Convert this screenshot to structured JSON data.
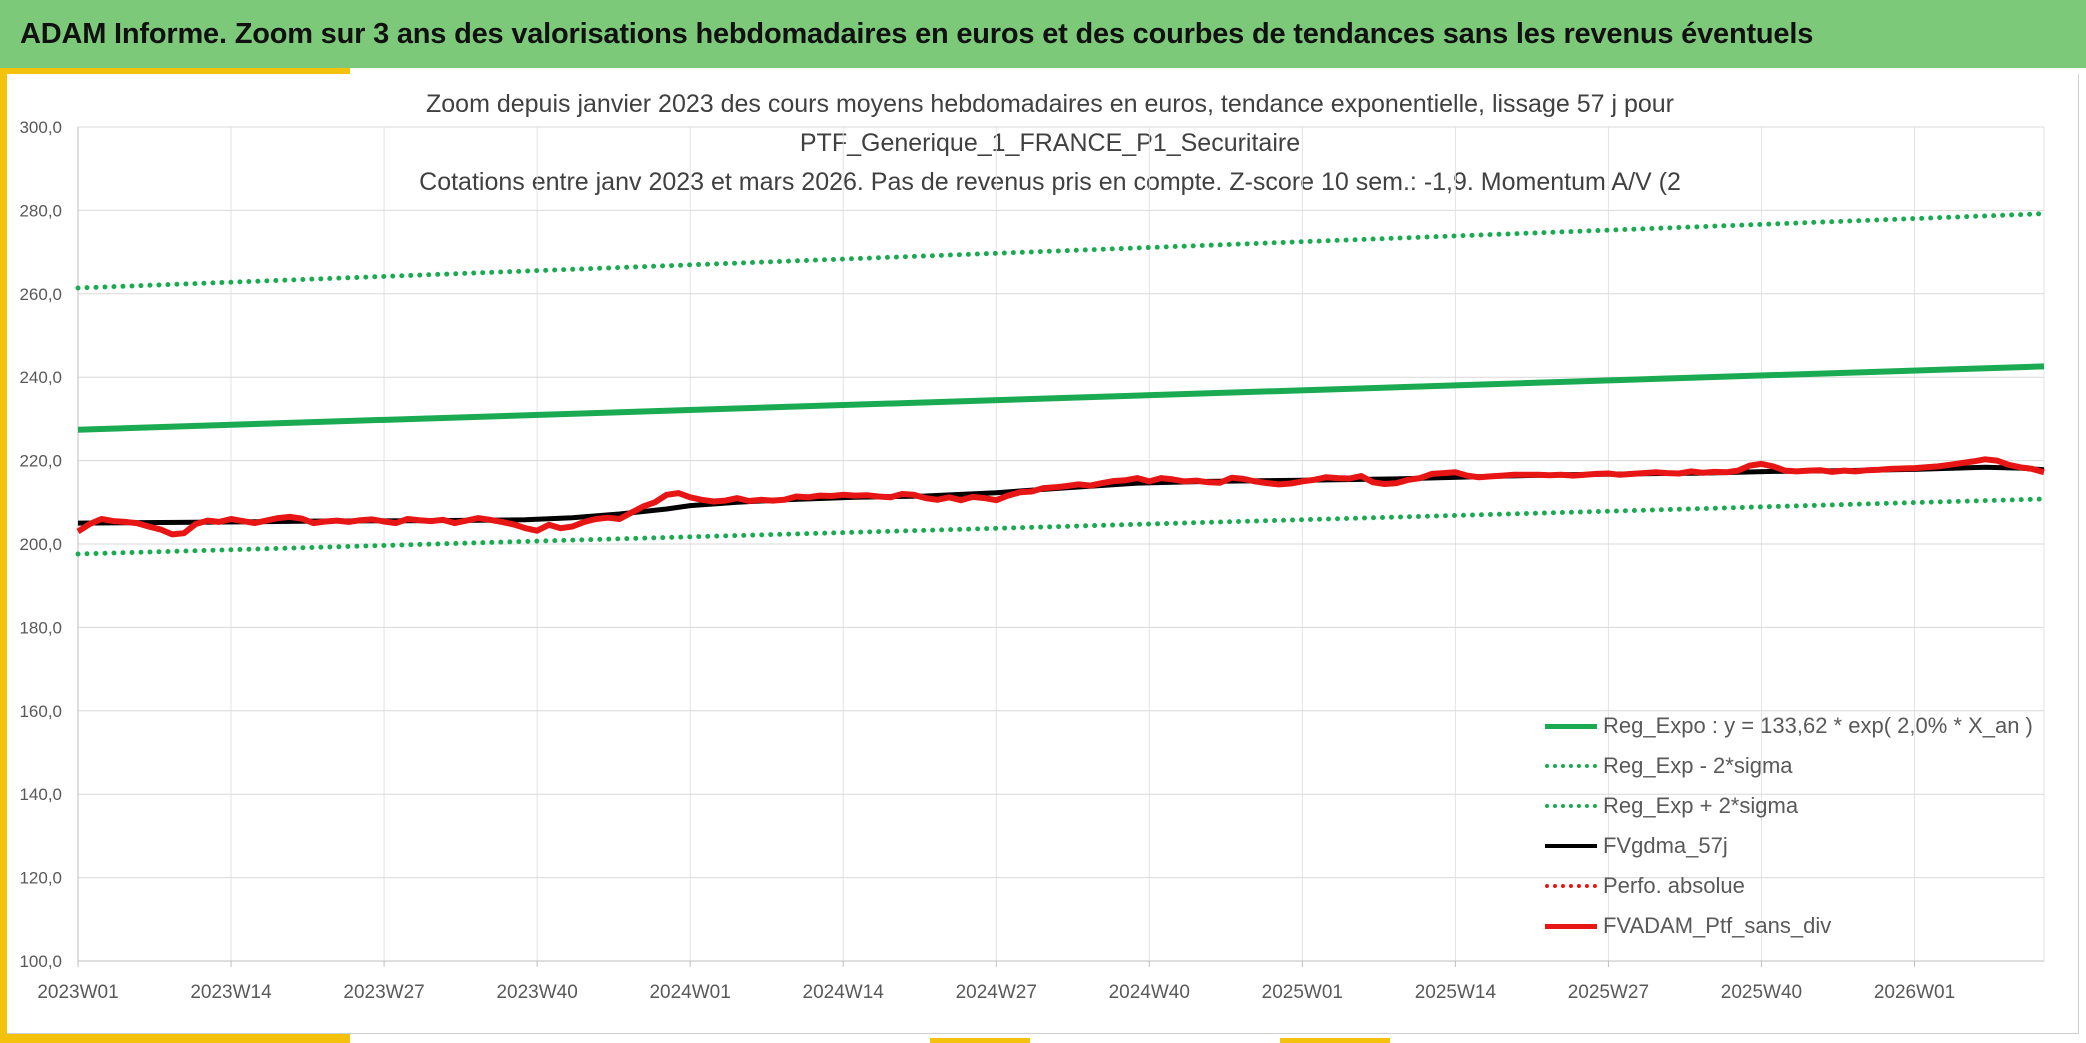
{
  "header": {
    "title": "ADAM Informe. Zoom sur 3 ans des valorisations hebdomadaires en euros et des courbes de tendances sans les revenus éventuels"
  },
  "colors": {
    "header_bg": "#7dc97a",
    "accent": "#f4c20d",
    "trend": "#1aab52",
    "smooth": "#000000",
    "perf": "#e81515"
  },
  "chart_data": {
    "type": "line",
    "title_lines": [
      "Zoom depuis janvier 2023 des cours moyens hebdomadaires en euros, tendance exponentielle, lissage 57 j pour",
      "PTF_Generique_1_FRANCE_P1_Securitaire",
      "Cotations entre janv 2023 et mars 2026. Pas de revenus pris en compte. Z-score 10 sem.: -1,9. Momentum A/V (2"
    ],
    "ylim": [
      100,
      300
    ],
    "y_ticks": [
      "100,0",
      "120,0",
      "140,0",
      "160,0",
      "180,0",
      "200,0",
      "220,0",
      "240,0",
      "260,0",
      "280,0",
      "300,0"
    ],
    "x_count": 168,
    "x_ticks": [
      {
        "label": "2023W01",
        "index": 0
      },
      {
        "label": "2023W14",
        "index": 13
      },
      {
        "label": "2023W27",
        "index": 26
      },
      {
        "label": "2023W40",
        "index": 39
      },
      {
        "label": "2024W01",
        "index": 52
      },
      {
        "label": "2024W14",
        "index": 65
      },
      {
        "label": "2024W27",
        "index": 78
      },
      {
        "label": "2024W40",
        "index": 91
      },
      {
        "label": "2025W01",
        "index": 104
      },
      {
        "label": "2025W14",
        "index": 117
      },
      {
        "label": "2025W27",
        "index": 130
      },
      {
        "label": "2025W40",
        "index": 143
      },
      {
        "label": "2026W01",
        "index": 156
      }
    ],
    "series": [
      {
        "name": "Reg_Expo : y = 133,62 * exp( 2,0% *  X_an )",
        "style": "solid",
        "color": "#1aab52",
        "width": 6,
        "points": [
          [
            0,
            227.4
          ],
          [
            167,
            242.6
          ]
        ]
      },
      {
        "name": "Reg_Exp - 2*sigma",
        "style": "dotted",
        "color": "#1aab52",
        "width": 5,
        "points": [
          [
            0,
            197.6
          ],
          [
            167,
            210.8
          ]
        ]
      },
      {
        "name": "Reg_Exp + 2*sigma",
        "style": "dotted",
        "color": "#1aab52",
        "width": 5,
        "points": [
          [
            0,
            261.4
          ],
          [
            167,
            279.2
          ]
        ]
      },
      {
        "name": "FVgdma_57j",
        "style": "solid",
        "color": "#000000",
        "width": 5,
        "points": [
          [
            0,
            205.0
          ],
          [
            10,
            205.2
          ],
          [
            20,
            205.5
          ],
          [
            30,
            205.6
          ],
          [
            38,
            205.8
          ],
          [
            42,
            206.3
          ],
          [
            46,
            207.2
          ],
          [
            50,
            208.4
          ],
          [
            52,
            209.2
          ],
          [
            56,
            210.0
          ],
          [
            60,
            210.6
          ],
          [
            66,
            211.2
          ],
          [
            72,
            211.5
          ],
          [
            78,
            212.3
          ],
          [
            84,
            213.5
          ],
          [
            90,
            214.6
          ],
          [
            96,
            215.0
          ],
          [
            104,
            215.3
          ],
          [
            112,
            215.6
          ],
          [
            120,
            216.2
          ],
          [
            126,
            216.6
          ],
          [
            132,
            216.8
          ],
          [
            138,
            217.0
          ],
          [
            144,
            217.4
          ],
          [
            150,
            217.6
          ],
          [
            156,
            217.9
          ],
          [
            162,
            218.4
          ],
          [
            165,
            218.2
          ],
          [
            167,
            217.8
          ]
        ]
      },
      {
        "name": "Perfo. absolue",
        "style": "dotted",
        "color": "#e81515",
        "width": 5,
        "points": []
      },
      {
        "name": "FVADAM_Ptf_sans_div",
        "style": "solid",
        "color": "#e81515",
        "width": 6,
        "points": [
          [
            0,
            203.0
          ],
          [
            1,
            204.8
          ],
          [
            2,
            206.0
          ],
          [
            3,
            205.5
          ],
          [
            4,
            205.3
          ],
          [
            5,
            205.0
          ],
          [
            6,
            204.2
          ],
          [
            7,
            203.5
          ],
          [
            8,
            202.3
          ],
          [
            9,
            202.6
          ],
          [
            10,
            204.8
          ],
          [
            11,
            205.6
          ],
          [
            12,
            205.3
          ],
          [
            13,
            206.0
          ],
          [
            14,
            205.5
          ],
          [
            15,
            205.0
          ],
          [
            16,
            205.6
          ],
          [
            17,
            206.2
          ],
          [
            18,
            206.5
          ],
          [
            19,
            206.1
          ],
          [
            20,
            205.0
          ],
          [
            21,
            205.4
          ],
          [
            22,
            205.6
          ],
          [
            23,
            205.3
          ],
          [
            24,
            205.7
          ],
          [
            25,
            205.9
          ],
          [
            26,
            205.4
          ],
          [
            27,
            205.0
          ],
          [
            28,
            206.0
          ],
          [
            29,
            205.7
          ],
          [
            30,
            205.5
          ],
          [
            31,
            205.8
          ],
          [
            32,
            205.0
          ],
          [
            33,
            205.6
          ],
          [
            34,
            206.2
          ],
          [
            35,
            205.8
          ],
          [
            36,
            205.3
          ],
          [
            37,
            204.7
          ],
          [
            38,
            203.8
          ],
          [
            39,
            203.2
          ],
          [
            40,
            204.6
          ],
          [
            41,
            203.8
          ],
          [
            42,
            204.2
          ],
          [
            43,
            205.3
          ],
          [
            44,
            206.0
          ],
          [
            45,
            206.3
          ],
          [
            46,
            206.0
          ],
          [
            47,
            207.5
          ],
          [
            48,
            209.0
          ],
          [
            49,
            210.0
          ],
          [
            50,
            211.8
          ],
          [
            51,
            212.2
          ],
          [
            52,
            211.2
          ],
          [
            53,
            210.6
          ],
          [
            54,
            210.2
          ],
          [
            55,
            210.4
          ],
          [
            56,
            211.0
          ],
          [
            57,
            210.3
          ],
          [
            58,
            210.6
          ],
          [
            59,
            210.4
          ],
          [
            60,
            210.6
          ],
          [
            61,
            211.4
          ],
          [
            62,
            211.2
          ],
          [
            63,
            211.6
          ],
          [
            64,
            211.5
          ],
          [
            65,
            211.8
          ],
          [
            66,
            211.6
          ],
          [
            67,
            211.7
          ],
          [
            68,
            211.4
          ],
          [
            69,
            211.2
          ],
          [
            70,
            212.0
          ],
          [
            71,
            211.8
          ],
          [
            72,
            211.0
          ],
          [
            73,
            210.6
          ],
          [
            74,
            211.2
          ],
          [
            75,
            210.5
          ],
          [
            76,
            211.3
          ],
          [
            77,
            211.0
          ],
          [
            78,
            210.5
          ],
          [
            79,
            211.6
          ],
          [
            80,
            212.4
          ],
          [
            81,
            212.6
          ],
          [
            82,
            213.4
          ],
          [
            83,
            213.6
          ],
          [
            84,
            213.9
          ],
          [
            85,
            214.3
          ],
          [
            86,
            214.0
          ],
          [
            87,
            214.6
          ],
          [
            88,
            215.1
          ],
          [
            89,
            215.3
          ],
          [
            90,
            215.8
          ],
          [
            91,
            215.0
          ],
          [
            92,
            215.8
          ],
          [
            93,
            215.5
          ],
          [
            94,
            215.0
          ],
          [
            95,
            215.2
          ],
          [
            96,
            214.8
          ],
          [
            97,
            214.7
          ],
          [
            98,
            215.9
          ],
          [
            99,
            215.6
          ],
          [
            100,
            215.0
          ],
          [
            101,
            214.6
          ],
          [
            102,
            214.3
          ],
          [
            103,
            214.5
          ],
          [
            104,
            215.0
          ],
          [
            105,
            215.4
          ],
          [
            106,
            216.0
          ],
          [
            107,
            215.8
          ],
          [
            108,
            215.7
          ],
          [
            109,
            216.3
          ],
          [
            110,
            214.8
          ],
          [
            111,
            214.4
          ],
          [
            112,
            214.6
          ],
          [
            113,
            215.4
          ],
          [
            114,
            215.8
          ],
          [
            115,
            216.8
          ],
          [
            116,
            217.0
          ],
          [
            117,
            217.2
          ],
          [
            118,
            216.4
          ],
          [
            119,
            216.0
          ],
          [
            120,
            216.2
          ],
          [
            121,
            216.4
          ],
          [
            122,
            216.6
          ],
          [
            123,
            216.6
          ],
          [
            124,
            216.6
          ],
          [
            125,
            216.5
          ],
          [
            126,
            216.6
          ],
          [
            127,
            216.4
          ],
          [
            128,
            216.6
          ],
          [
            129,
            216.8
          ],
          [
            130,
            216.9
          ],
          [
            131,
            216.6
          ],
          [
            132,
            216.8
          ],
          [
            133,
            217.0
          ],
          [
            134,
            217.2
          ],
          [
            135,
            217.0
          ],
          [
            136,
            216.9
          ],
          [
            137,
            217.4
          ],
          [
            138,
            217.1
          ],
          [
            139,
            217.3
          ],
          [
            140,
            217.2
          ],
          [
            141,
            217.6
          ],
          [
            142,
            218.8
          ],
          [
            143,
            219.2
          ],
          [
            144,
            218.6
          ],
          [
            145,
            217.6
          ],
          [
            146,
            217.4
          ],
          [
            147,
            217.6
          ],
          [
            148,
            217.7
          ],
          [
            149,
            217.3
          ],
          [
            150,
            217.6
          ],
          [
            151,
            217.4
          ],
          [
            152,
            217.7
          ],
          [
            153,
            217.8
          ],
          [
            154,
            218.0
          ],
          [
            155,
            218.1
          ],
          [
            156,
            218.2
          ],
          [
            157,
            218.4
          ],
          [
            158,
            218.6
          ],
          [
            159,
            219.0
          ],
          [
            160,
            219.4
          ],
          [
            161,
            219.8
          ],
          [
            162,
            220.3
          ],
          [
            163,
            220.0
          ],
          [
            164,
            219.0
          ],
          [
            165,
            218.4
          ],
          [
            166,
            218.0
          ],
          [
            167,
            217.2
          ]
        ]
      }
    ]
  }
}
